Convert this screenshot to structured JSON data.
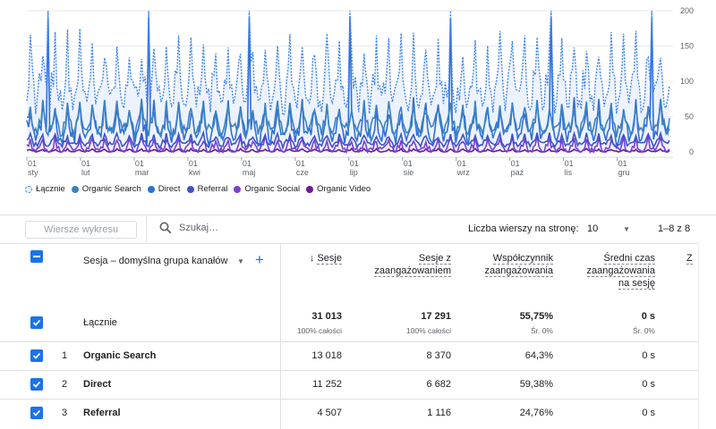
{
  "chart_data": {
    "type": "line",
    "x_ticks": [
      {
        "day": "01",
        "month": "sty"
      },
      {
        "day": "01",
        "month": "lut"
      },
      {
        "day": "01",
        "month": "mar"
      },
      {
        "day": "01",
        "month": "kwi"
      },
      {
        "day": "01",
        "month": "maj"
      },
      {
        "day": "01",
        "month": "cze"
      },
      {
        "day": "01",
        "month": "lip"
      },
      {
        "day": "01",
        "month": "sie"
      },
      {
        "day": "01",
        "month": "wrz"
      },
      {
        "day": "01",
        "month": "paź"
      },
      {
        "day": "01",
        "month": "lis"
      },
      {
        "day": "01",
        "month": "gru"
      }
    ],
    "y_ticks": [
      "0",
      "50",
      "100",
      "150",
      "200"
    ],
    "ylim": [
      0,
      200
    ],
    "grid": true,
    "days": 365,
    "series": [
      {
        "name": "Łącznie",
        "color": "#4285f4",
        "style": "dashed-area",
        "base": 85,
        "amp": 45,
        "spike_every": 57,
        "spike": 200
      },
      {
        "name": "Organic Search",
        "color": "#3b82c4",
        "style": "line",
        "base": 35,
        "amp": 20,
        "spike_every": 0,
        "spike": 0
      },
      {
        "name": "Direct",
        "color": "#2f6fd6",
        "style": "line",
        "base": 28,
        "amp": 25,
        "spike_every": 57,
        "spike": 190
      },
      {
        "name": "Referral",
        "color": "#3f51c9",
        "style": "line",
        "base": 12,
        "amp": 8,
        "spike_every": 0,
        "spike": 0
      },
      {
        "name": "Organic Social",
        "color": "#7b3fd1",
        "style": "line",
        "base": 4,
        "amp": 10,
        "spike_every": 0,
        "spike": 0
      },
      {
        "name": "Organic Video",
        "color": "#6a1b9a",
        "style": "line",
        "base": 1,
        "amp": 2,
        "spike_every": 0,
        "spike": 0
      }
    ]
  },
  "legend": [
    "Łącznie",
    "Organic Search",
    "Direct",
    "Referral",
    "Organic Social",
    "Organic Video"
  ],
  "toolbar": {
    "rows_button": "Wiersze wykresu",
    "search_placeholder": "Szukaj…",
    "rows_per_page_label": "Liczba wierszy na stronę:",
    "rows_per_page_value": "10",
    "pagination": "1–8 z 8"
  },
  "table": {
    "dimension_header": "Sesja – domyślna grupa kanałów",
    "headers": {
      "sessions": "Sesje",
      "engaged_1": "Sesje z",
      "engaged_2": "zaangażowaniem",
      "rate_1": "Współczynnik",
      "rate_2": "zaangażowania",
      "avg_1": "Średni czas",
      "avg_2": "zaangażowania",
      "avg_3": "na sesję",
      "more": "Z"
    },
    "total": {
      "label": "Łącznie",
      "sessions": "31 013",
      "sessions_sub": "100% całości",
      "engaged": "17 291",
      "engaged_sub": "100% całości",
      "rate": "55,75%",
      "rate_sub": "Śr. 0%",
      "avg": "0 s",
      "avg_sub": "Śr. 0%"
    },
    "rows": [
      {
        "num": "1",
        "name": "Organic Search",
        "sessions": "13 018",
        "engaged": "8 370",
        "rate": "64,3%",
        "avg": "0 s"
      },
      {
        "num": "2",
        "name": "Direct",
        "sessions": "11 252",
        "engaged": "6 682",
        "rate": "59,38%",
        "avg": "0 s"
      },
      {
        "num": "3",
        "name": "Referral",
        "sessions": "4 507",
        "engaged": "1 116",
        "rate": "24,76%",
        "avg": "0 s"
      }
    ]
  },
  "colors": {
    "accent": "#1a73e8",
    "border": "#e0e0e0"
  }
}
